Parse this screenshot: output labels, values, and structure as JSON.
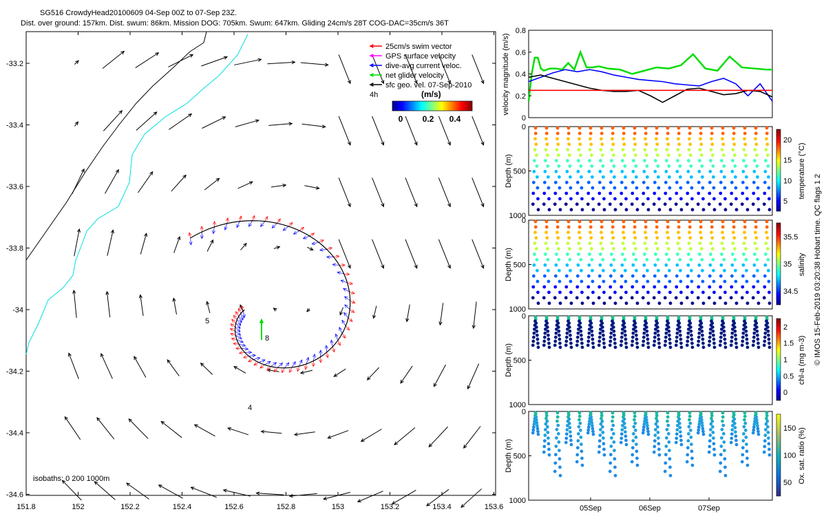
{
  "header": {
    "title": "SG516 CrowdyHead20100609 04-Sep 00Z to 07-Sep 23Z.",
    "subtitle": "Dist. over ground: 157km. Dist. swum: 86km. Mission DOG: 705km. Swum: 647km. Gliding 24cm/s 28T COG-DAC=35cm/s 36T"
  },
  "credit": "© IMOS 15-Feb-2019 03:20:38 Hobart time. QC flags 1  2",
  "map": {
    "xticks": [
      "151.8",
      "152",
      "152.2",
      "152.4",
      "152.6",
      "152.8",
      "153",
      "153.2",
      "153.4",
      "153.6"
    ],
    "yticks": [
      "-33.2",
      "-33.4",
      "-33.6",
      "-33.8",
      "-34",
      "-34.2",
      "-34.4",
      "-34.6"
    ],
    "xlim": [
      151.8,
      153.65
    ],
    "ylim": [
      -34.63,
      -33.1
    ],
    "legend": [
      {
        "label": "25cm/s swim vector",
        "color": "#ff0000"
      },
      {
        "label": "GPS surface velocity",
        "color": "#ff00ff"
      },
      {
        "label": "dive-avg current veloc.",
        "color": "#0000ff"
      },
      {
        "label": "net glider velocity",
        "color": "#00dd00"
      },
      {
        "label": "sfc geo. vel. 07-Sep-2010",
        "color": "#000000"
      }
    ],
    "colorbar": {
      "unit": "(m/s)",
      "ticks": [
        "0",
        "0.2",
        "0.4"
      ],
      "tag": "4h"
    },
    "isobaths": "isobaths: 0   200  1000m",
    "day_labels": [
      "4",
      "5",
      "8"
    ]
  },
  "chart_data": [
    {
      "type": "line",
      "ylabel": "velocity magnitude (m/s)",
      "yticks": [
        "0",
        "0.2",
        "0.4",
        "0.6",
        "0.8"
      ],
      "ylim": [
        0,
        0.8
      ],
      "xlim": [
        0,
        4
      ],
      "series": [
        {
          "color": "#00dd00",
          "x": [
            0.0,
            0.05,
            0.1,
            0.15,
            0.2,
            0.25,
            0.35,
            0.45,
            0.55,
            0.65,
            0.75,
            0.85,
            0.95,
            1.05,
            1.15,
            1.3,
            1.5,
            1.7,
            1.9,
            2.1,
            2.3,
            2.5,
            2.7,
            2.9,
            3.1,
            3.3,
            3.5,
            3.7,
            3.9,
            4.0
          ],
          "y": [
            0.15,
            0.4,
            0.55,
            0.55,
            0.45,
            0.43,
            0.45,
            0.45,
            0.44,
            0.5,
            0.44,
            0.6,
            0.46,
            0.46,
            0.47,
            0.45,
            0.44,
            0.4,
            0.43,
            0.46,
            0.45,
            0.48,
            0.58,
            0.45,
            0.43,
            0.56,
            0.46,
            0.45,
            0.44,
            0.44
          ]
        },
        {
          "color": "#0000ff",
          "x": [
            0.0,
            0.2,
            0.4,
            0.6,
            0.8,
            1.0,
            1.2,
            1.4,
            1.6,
            1.8,
            2.0,
            2.2,
            2.4,
            2.6,
            2.8,
            3.0,
            3.2,
            3.4,
            3.6,
            3.8,
            4.0
          ],
          "y": [
            0.33,
            0.37,
            0.41,
            0.44,
            0.42,
            0.44,
            0.42,
            0.39,
            0.37,
            0.35,
            0.34,
            0.33,
            0.31,
            0.3,
            0.29,
            0.33,
            0.36,
            0.31,
            0.2,
            0.31,
            0.15
          ]
        },
        {
          "color": "#000000",
          "x": [
            0.0,
            0.2,
            0.4,
            0.6,
            0.8,
            1.0,
            1.2,
            1.4,
            1.6,
            1.8,
            2.0,
            2.2,
            2.4,
            2.6,
            2.8,
            3.0,
            3.2,
            3.4,
            3.6,
            3.8,
            4.0
          ],
          "y": [
            0.37,
            0.39,
            0.36,
            0.33,
            0.3,
            0.27,
            0.25,
            0.24,
            0.24,
            0.25,
            0.2,
            0.14,
            0.2,
            0.26,
            0.27,
            0.24,
            0.21,
            0.22,
            0.25,
            0.24,
            0.19
          ]
        },
        {
          "color": "#ff0000",
          "x": [
            0,
            4
          ],
          "y": [
            0.25,
            0.25
          ]
        }
      ]
    },
    {
      "type": "scatter",
      "quantity": "temperature",
      "ylabel": "Depth (m)",
      "cblabel": "temperature (°C)",
      "yticks": [
        "0",
        "500",
        "1000"
      ],
      "cbticks": [
        "5",
        "10",
        "15",
        "20"
      ]
    },
    {
      "type": "scatter",
      "quantity": "salinity",
      "ylabel": "Depth (m)",
      "cblabel": "salinity",
      "yticks": [
        "0",
        "500",
        "1000"
      ],
      "cbticks": [
        "34.5",
        "35",
        "35.5"
      ]
    },
    {
      "type": "scatter",
      "quantity": "chl-a",
      "ylabel": "Depth (m)",
      "cblabel": "chl-a (mg m-3)",
      "yticks": [
        "0",
        "500",
        "1000"
      ],
      "cbticks": [
        "0",
        "0.5",
        "1",
        "1.5",
        "2"
      ]
    },
    {
      "type": "scatter",
      "quantity": "oxygen",
      "ylabel": "Depth (m)",
      "cblabel": "Ox. sat. ratio (%)",
      "yticks": [
        "0",
        "500",
        "1000"
      ],
      "cbticks": [
        "50",
        "100",
        "150"
      ],
      "xticks": [
        "05Sep",
        "06Sep",
        "07Sep"
      ]
    }
  ]
}
